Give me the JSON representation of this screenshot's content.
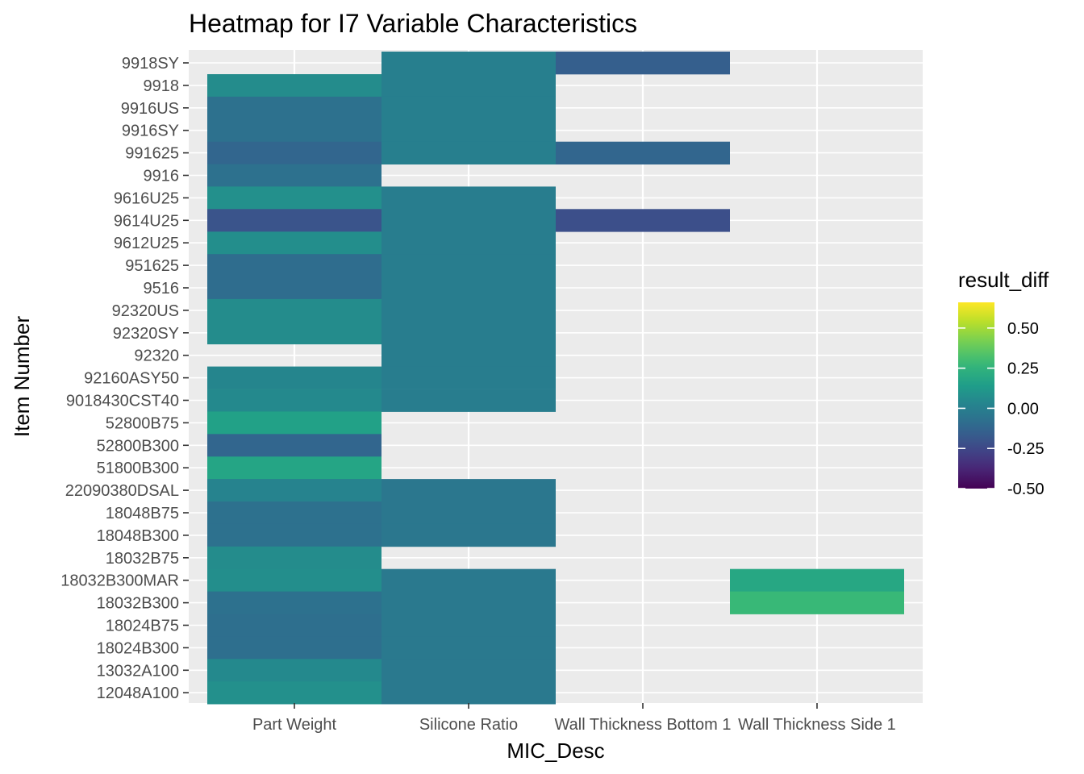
{
  "chart_data": {
    "type": "heatmap",
    "title": "Heatmap for I7 Variable Characteristics",
    "xlabel": "MIC_Desc",
    "ylabel": "Item Number",
    "x_categories": [
      "Part Weight",
      "Silicone Ratio",
      "Wall Thickness Bottom 1",
      "Wall Thickness Side 1"
    ],
    "y_categories": [
      "9918SY",
      "9918",
      "9916US",
      "9916SY",
      "991625",
      "9916",
      "9616U25",
      "9614U25",
      "9612U25",
      "951625",
      "9516",
      "92320US",
      "92320SY",
      "92320",
      "92160ASY50",
      "9018430CST40",
      "52800B75",
      "52800B300",
      "51800B300",
      "22090380DSAL",
      "18048B75",
      "18048B300",
      "18032B75",
      "18032B300MAR",
      "18032B300",
      "18024B75",
      "18024B300",
      "13032A100",
      "12048A100"
    ],
    "values": [
      [
        null,
        0.0,
        -0.15,
        null
      ],
      [
        0.06,
        0.0,
        null,
        null
      ],
      [
        -0.07,
        0.0,
        null,
        null
      ],
      [
        -0.07,
        0.0,
        null,
        null
      ],
      [
        -0.12,
        0.0,
        -0.12,
        null
      ],
      [
        -0.07,
        null,
        null,
        null
      ],
      [
        0.08,
        -0.01,
        null,
        null
      ],
      [
        -0.2,
        -0.01,
        -0.22,
        null
      ],
      [
        0.07,
        -0.01,
        null,
        null
      ],
      [
        -0.09,
        -0.01,
        null,
        null
      ],
      [
        -0.09,
        -0.01,
        null,
        null
      ],
      [
        0.06,
        -0.01,
        null,
        null
      ],
      [
        0.06,
        -0.01,
        null,
        null
      ],
      [
        null,
        -0.01,
        null,
        null
      ],
      [
        0.03,
        -0.01,
        null,
        null
      ],
      [
        0.05,
        -0.01,
        null,
        null
      ],
      [
        0.16,
        null,
        null,
        null
      ],
      [
        -0.12,
        null,
        null,
        null
      ],
      [
        0.18,
        null,
        null,
        null
      ],
      [
        0.02,
        -0.04,
        null,
        null
      ],
      [
        -0.07,
        -0.04,
        null,
        null
      ],
      [
        -0.07,
        -0.04,
        null,
        null
      ],
      [
        0.06,
        null,
        null,
        null
      ],
      [
        0.07,
        -0.03,
        null,
        0.19
      ],
      [
        -0.07,
        -0.03,
        null,
        0.28
      ],
      [
        -0.08,
        -0.03,
        null,
        null
      ],
      [
        -0.08,
        -0.03,
        null,
        null
      ],
      [
        0.05,
        -0.03,
        null,
        null
      ],
      [
        0.08,
        -0.03,
        null,
        null
      ]
    ],
    "legend": {
      "title": "result_diff",
      "placement": "right",
      "range": [
        -0.5,
        0.66
      ],
      "ticks": [
        0.5,
        0.25,
        0.0,
        -0.25,
        -0.5
      ],
      "tick_labels": [
        "0.50",
        "0.25",
        "0.00",
        "-0.25",
        "-0.50"
      ],
      "palette": "viridis"
    },
    "grid": true,
    "panel_background": "#ebebeb",
    "grid_color": "#ffffff"
  }
}
